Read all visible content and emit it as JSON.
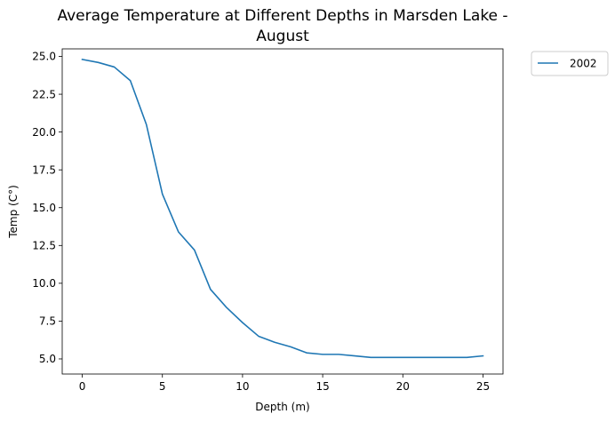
{
  "chart_data": {
    "type": "line",
    "title_lines": [
      "Average Temperature at Different Depths in Marsden Lake -",
      "August"
    ],
    "xlabel": "Depth (m)",
    "ylabel": "Temp (C°)",
    "xlim": [
      -1.25,
      26.25
    ],
    "ylim": [
      4.0,
      25.5
    ],
    "xticks": [
      0,
      5,
      10,
      15,
      20,
      25
    ],
    "yticks": [
      5.0,
      7.5,
      10.0,
      12.5,
      15.0,
      17.5,
      20.0,
      22.5,
      25.0
    ],
    "xtick_labels": [
      "0",
      "5",
      "10",
      "15",
      "20",
      "25"
    ],
    "ytick_labels": [
      "5.0",
      "7.5",
      "10.0",
      "12.5",
      "15.0",
      "17.5",
      "20.0",
      "22.5",
      "25.0"
    ],
    "grid": false,
    "legend_placement": "outside-top-right",
    "series": [
      {
        "name": "2002",
        "color": "#1f77b4",
        "x": [
          0,
          1,
          2,
          3,
          4,
          5,
          6,
          7,
          8,
          9,
          10,
          11,
          12,
          13,
          14,
          15,
          16,
          17,
          18,
          19,
          20,
          21,
          22,
          23,
          24,
          25
        ],
        "y": [
          24.8,
          24.6,
          24.3,
          23.4,
          20.5,
          15.9,
          13.4,
          12.2,
          9.6,
          8.4,
          7.4,
          6.5,
          6.1,
          5.8,
          5.4,
          5.3,
          5.3,
          5.2,
          5.1,
          5.1,
          5.1,
          5.1,
          5.1,
          5.1,
          5.1,
          5.2
        ]
      }
    ]
  }
}
